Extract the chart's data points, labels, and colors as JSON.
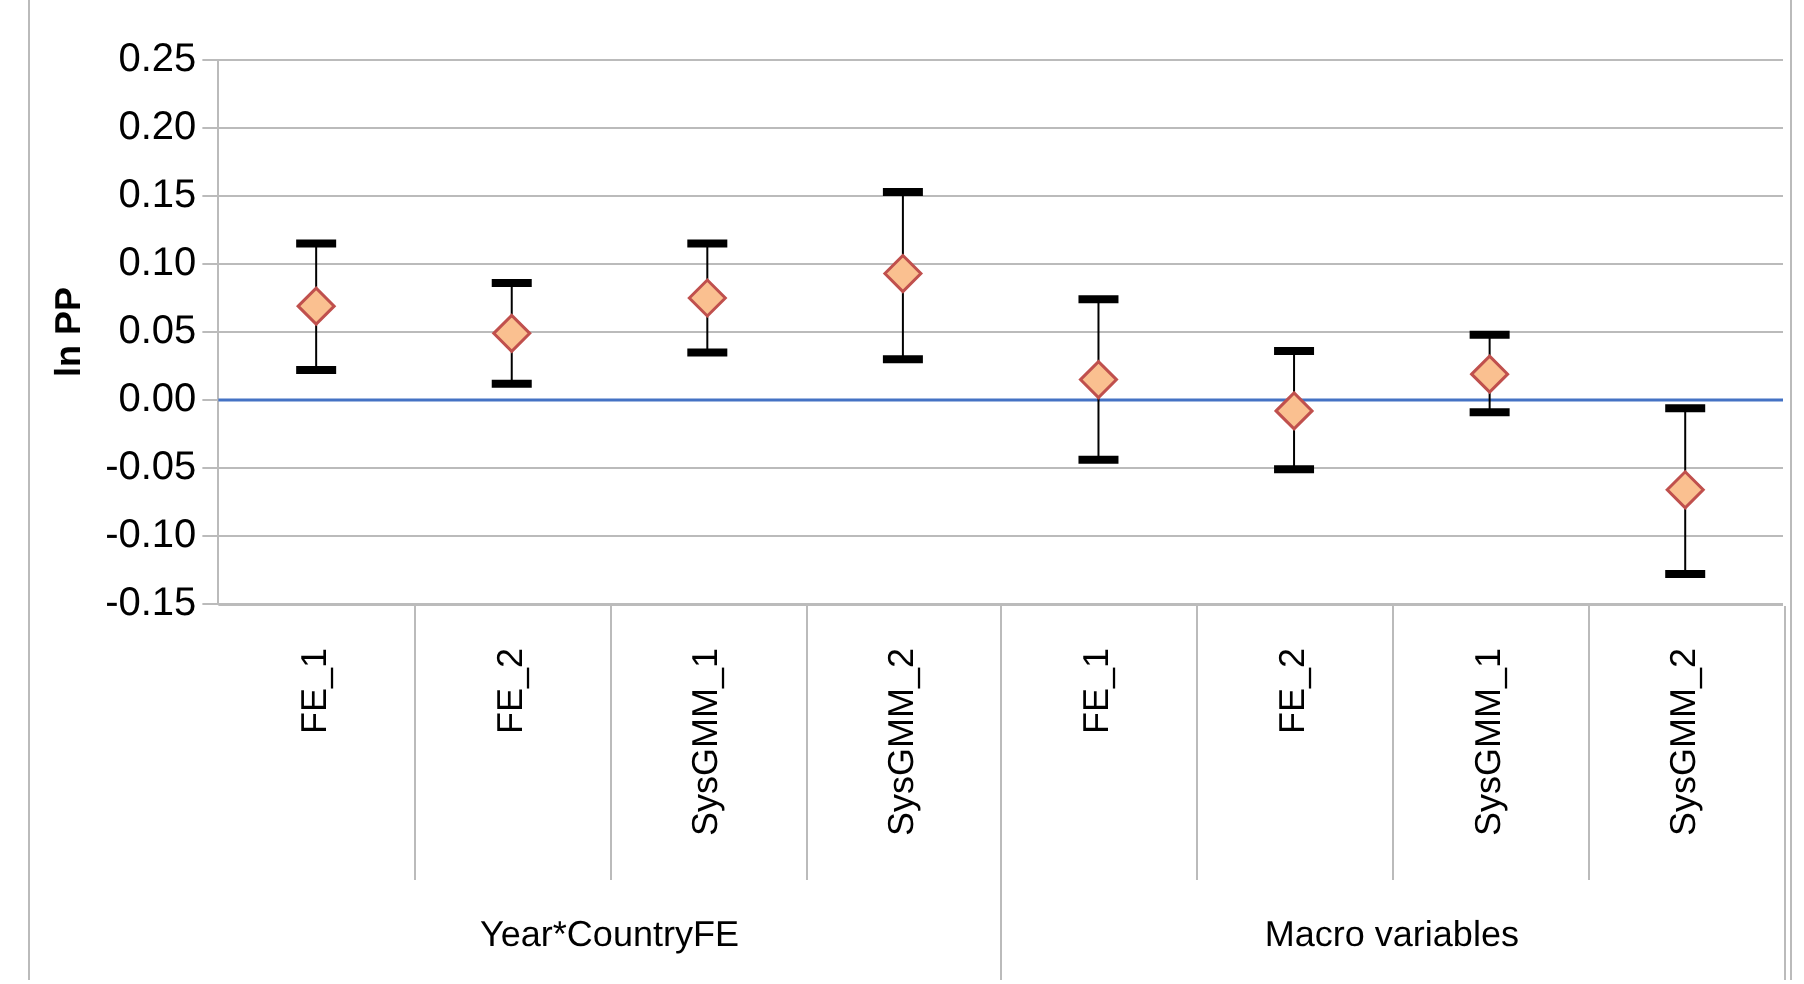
{
  "chart_data": {
    "type": "scatter",
    "ylabel": "ln PP",
    "categories": [
      "FE_1",
      "FE_2",
      "SysGMM_1",
      "SysGMM_2",
      "FE_1",
      "FE_2",
      "SysGMM_1",
      "SysGMM_2"
    ],
    "series": [
      {
        "color": "#fac090",
        "values": [
          0.069,
          0.049,
          0.075,
          0.093,
          0.015,
          -0.008,
          0.019,
          -0.066
        ],
        "errors": [
          [
            0.022,
            0.115
          ],
          [
            0.012,
            0.086
          ],
          [
            0.035,
            0.115
          ],
          [
            0.03,
            0.153
          ],
          [
            -0.044,
            0.074
          ],
          [
            -0.051,
            0.036
          ],
          [
            -0.009,
            0.048
          ],
          [
            -0.128,
            -0.006
          ]
        ]
      }
    ],
    "ylim": [
      -0.15,
      0.25
    ],
    "yticks": [
      {
        "value": -0.15,
        "label": "-0.15"
      },
      {
        "value": -0.1,
        "label": "-0.10"
      },
      {
        "value": -0.05,
        "label": "-0.05"
      },
      {
        "value": 0,
        "label": "0.00"
      },
      {
        "value": 0.05,
        "label": "0.05"
      },
      {
        "value": 0.1,
        "label": "0.10"
      },
      {
        "value": 0.15,
        "label": "0.15"
      },
      {
        "value": 0.2,
        "label": "0.20"
      },
      {
        "value": 0.25,
        "label": "0.25"
      }
    ],
    "ref_lines": [
      {
        "axis": "y",
        "value": 0,
        "color": "#4472c4"
      }
    ],
    "annotations": [
      "Year*CountryFE",
      "Macro variables"
    ],
    "grid": "y",
    "legend": false,
    "marker": "diamond"
  }
}
